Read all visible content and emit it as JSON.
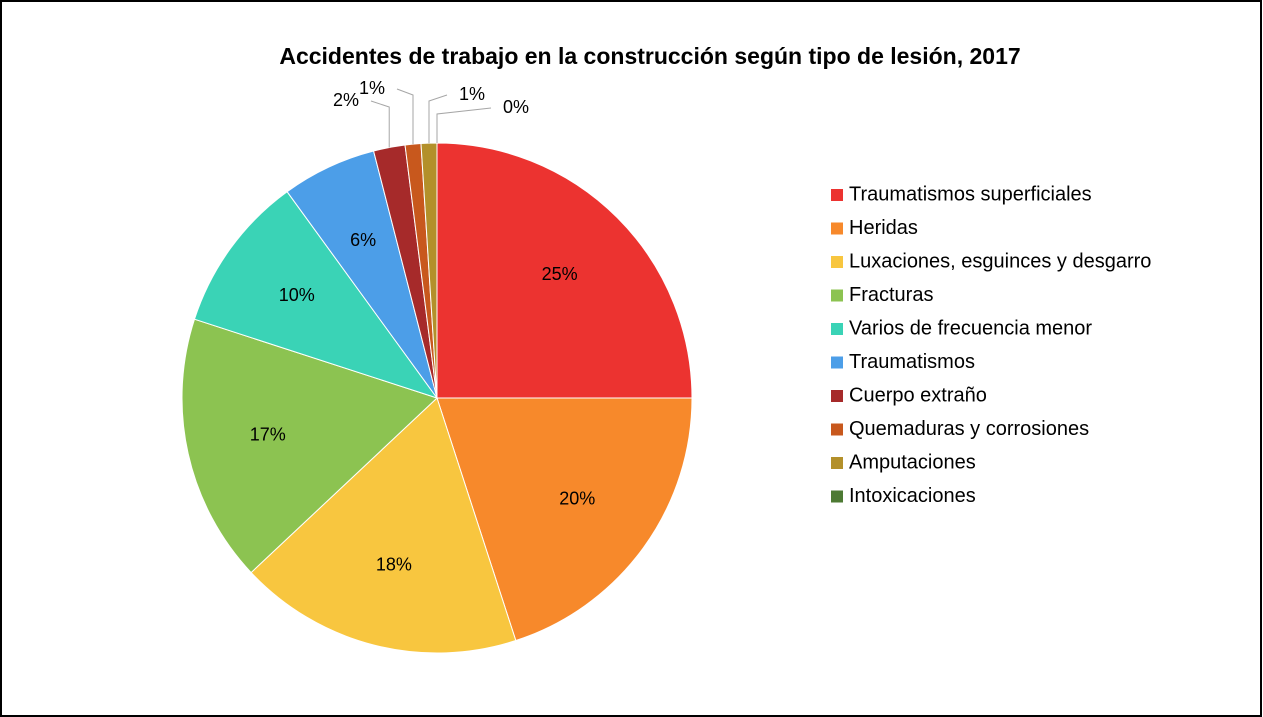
{
  "chart_data": {
    "type": "pie",
    "title": "Accidentes de trabajo en la construcción según tipo de lesión, 2017",
    "categories": [
      "Traumatismos superficiales",
      "Heridas",
      "Luxaciones, esguinces y desgarro",
      "Fracturas",
      "Varios de frecuencia menor",
      "Traumatismos",
      "Cuerpo extraño",
      "Quemaduras y corrosiones",
      "Amputaciones",
      "Intoxicaciones"
    ],
    "values": [
      25,
      20,
      18,
      17,
      10,
      6,
      2,
      1,
      1,
      0
    ],
    "value_labels": [
      "25%",
      "20%",
      "18%",
      "17%",
      "10%",
      "6%",
      "2%",
      "1%",
      "1%",
      "0%"
    ],
    "colors": [
      "#ec3330",
      "#f7892b",
      "#f8c63f",
      "#8cc351",
      "#3ad3b6",
      "#4c9ee8",
      "#a62a2a",
      "#c8581d",
      "#b3902a",
      "#4d7a33"
    ],
    "legend": "right"
  }
}
